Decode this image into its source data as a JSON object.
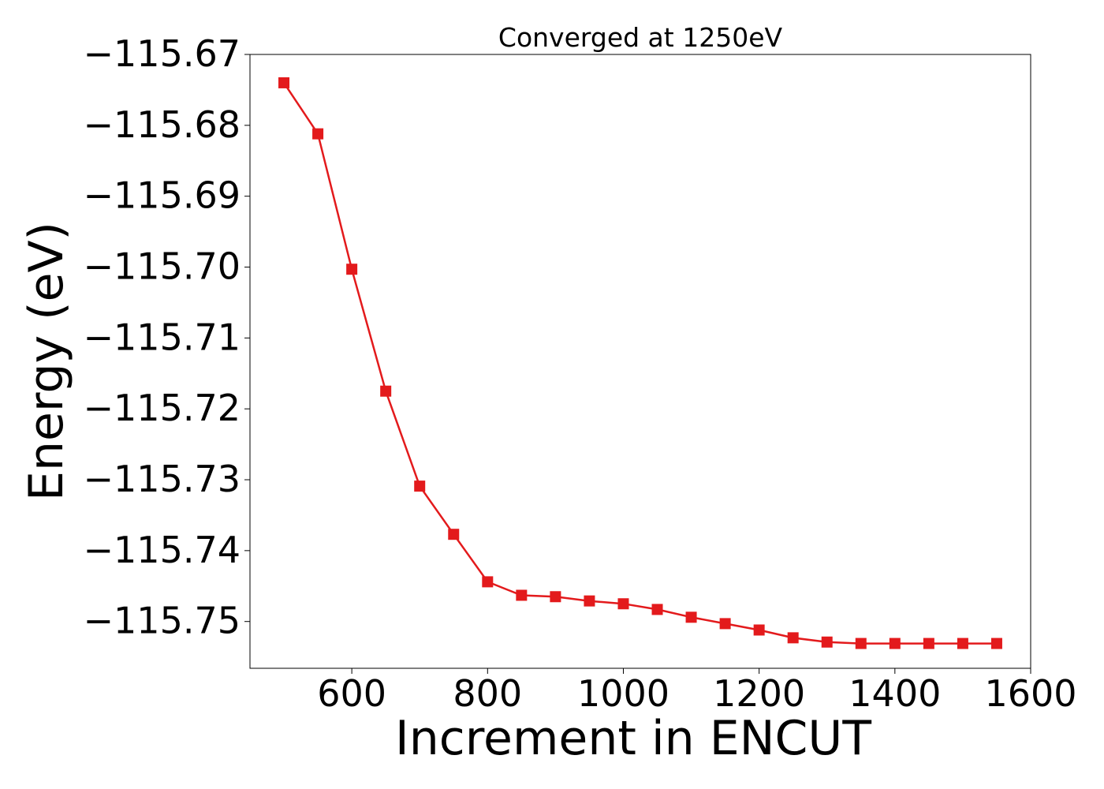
{
  "chart_data": {
    "type": "line",
    "title": "Converged at 1250eV",
    "xlabel": "Increment in ENCUT",
    "ylabel": "Energy (eV)",
    "xlim": [
      450,
      1600
    ],
    "ylim": [
      -115.7566,
      -115.67
    ],
    "x_ticks": [
      600,
      800,
      1000,
      1200,
      1400,
      1600
    ],
    "x_tick_labels": [
      "600",
      "800",
      "1000",
      "1200",
      "1400",
      "1600"
    ],
    "y_ticks": [
      -115.67,
      -115.68,
      -115.69,
      -115.7,
      -115.71,
      -115.72,
      -115.73,
      -115.74,
      -115.75
    ],
    "y_tick_labels": [
      "−115.67",
      "−115.68",
      "−115.69",
      "−115.70",
      "−115.71",
      "−115.72",
      "−115.73",
      "−115.74",
      "−115.75"
    ],
    "grid": false,
    "series": [
      {
        "color": "#e31a1c",
        "marker": "square",
        "x": [
          500,
          550,
          600,
          650,
          700,
          750,
          800,
          850,
          900,
          950,
          1000,
          1050,
          1100,
          1150,
          1200,
          1250,
          1300,
          1350,
          1400,
          1450,
          1500,
          1550
        ],
        "y": [
          -115.674,
          -115.6812,
          -115.7003,
          -115.7175,
          -115.7309,
          -115.7377,
          -115.7444,
          -115.7463,
          -115.7465,
          -115.7471,
          -115.7475,
          -115.7483,
          -115.7494,
          -115.7503,
          -115.7512,
          -115.7523,
          -115.7529,
          -115.7531,
          -115.7531,
          -115.7531,
          -115.7531,
          -115.7531
        ]
      }
    ]
  }
}
